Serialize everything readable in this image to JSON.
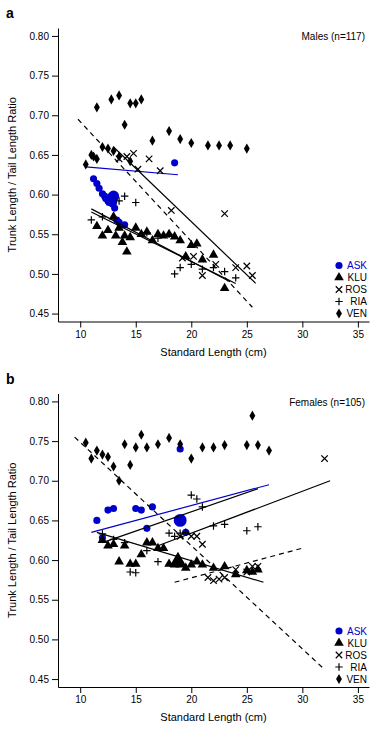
{
  "chart_data": [
    {
      "type": "scatter",
      "title": "Males (n=117)",
      "label": "a",
      "xlabel": "Standard Length (cm)",
      "ylabel": "Trunk Length / Tail Length Ratio",
      "xlim": [
        8,
        36
      ],
      "ylim": [
        0.44,
        0.81
      ],
      "xticks": [
        10,
        15,
        20,
        25,
        30,
        35
      ],
      "yticks": [
        0.45,
        {
          "value": 0.5,
          "label": "0.50"
        },
        0.55,
        {
          "value": 0.6,
          "label": "0.60"
        },
        0.65,
        {
          "value": 0.7,
          "label": "0.70"
        },
        0.75,
        {
          "value": 0.8,
          "label": "0.80"
        }
      ],
      "grid": false,
      "legend": "lower right",
      "series": [
        {
          "name": "ASK",
          "color": "#0000cc",
          "marker": "circle",
          "x": [
            11.2,
            11.5,
            11.7,
            12.0,
            12.2,
            12.3,
            12.5,
            12.6,
            12.8,
            12.9,
            13.0,
            13.1,
            13.3,
            13.5,
            14.0,
            18.5
          ],
          "values": [
            0.62,
            0.614,
            0.608,
            0.601,
            0.598,
            0.595,
            0.592,
            0.59,
            0.598,
            0.588,
            0.59,
            0.583,
            0.568,
            0.565,
            0.562,
            0.64
          ],
          "mean": {
            "x": 13.0,
            "y": 0.598,
            "size": 100
          },
          "lines": [
            {
              "x": [
                10.5,
                18.8
              ],
              "values": [
                0.635,
                0.625
              ],
              "line_style": "solid"
            }
          ]
        },
        {
          "name": "KLU",
          "color": "#000000",
          "marker": "triangle",
          "x": [
            11.5,
            12.0,
            12.5,
            13.0,
            13.2,
            13.5,
            13.8,
            14.0,
            14.2,
            14.5,
            15.0,
            15.5,
            16.0,
            16.5,
            17.0,
            17.5,
            18.0,
            18.5,
            19.0,
            19.5,
            20.0,
            20.5,
            21.0,
            22.0,
            23.0
          ],
          "values": [
            0.56,
            0.548,
            0.555,
            0.572,
            0.548,
            0.558,
            0.54,
            0.548,
            0.528,
            0.546,
            0.558,
            0.55,
            0.553,
            0.542,
            0.55,
            0.548,
            0.55,
            0.547,
            0.542,
            0.522,
            0.536,
            0.538,
            0.518,
            0.524,
            0.482
          ],
          "lines": [
            {
              "x": [
                11.0,
                23.5
              ],
              "values": [
                0.582,
                0.49
              ],
              "line_style": "solid"
            }
          ]
        },
        {
          "name": "ROS",
          "color": "#000000",
          "marker": "x",
          "x": [
            13.5,
            14.2,
            14.8,
            15.2,
            16.2,
            17.2,
            18.2,
            19.2,
            20.2,
            21.0,
            22.2,
            23.0,
            24.0,
            25.0,
            25.5
          ],
          "values": [
            0.645,
            0.648,
            0.652,
            0.632,
            0.645,
            0.63,
            0.58,
            0.52,
            0.522,
            0.498,
            0.512,
            0.576,
            0.508,
            0.51,
            0.498
          ],
          "lines": [
            {
              "x": [
                13.0,
                25.8
              ],
              "values": [
                0.66,
                0.488
              ],
              "line_style": "solid"
            }
          ]
        },
        {
          "name": "RIA",
          "color": "#000000",
          "marker": "plus",
          "x": [
            11.0,
            12.0,
            13.5,
            14.0,
            15.0,
            16.0,
            17.0,
            18.0,
            18.5,
            19.0,
            20.0,
            21.0,
            22.0,
            23.0,
            24.0
          ],
          "values": [
            0.568,
            0.572,
            0.592,
            0.598,
            0.59,
            0.552,
            0.545,
            0.55,
            0.5,
            0.508,
            0.512,
            0.506,
            0.508,
            0.503,
            0.495
          ],
          "lines": [
            {
              "x": [
                11.0,
                24.0
              ],
              "values": [
                0.578,
                0.488
              ],
              "line_style": "solid"
            }
          ]
        },
        {
          "name": "VEN",
          "color": "#000000",
          "marker": "diamond",
          "x": [
            10.5,
            11.0,
            11.2,
            11.5,
            12.0,
            12.5,
            13.0,
            13.5,
            14.0,
            14.5,
            15.0,
            16.5,
            18.0,
            19.0,
            20.0,
            21.5,
            22.5,
            23.5,
            25.0,
            11.5,
            12.8,
            13.5,
            14.5,
            15.5
          ],
          "values": [
            0.638,
            0.65,
            0.648,
            0.645,
            0.66,
            0.658,
            0.655,
            0.648,
            0.688,
            0.642,
            0.715,
            0.668,
            0.68,
            0.67,
            0.665,
            0.662,
            0.662,
            0.662,
            0.658,
            0.71,
            0.72,
            0.725,
            0.715,
            0.72
          ],
          "lines": [
            {
              "x": [
                9.8,
                25.5
              ],
              "values": [
                0.695,
                0.458
              ],
              "line_style": "dashed"
            }
          ]
        }
      ]
    },
    {
      "type": "scatter",
      "title": "Females (n=105)",
      "label": "b",
      "xlabel": "Standard Length (cm)",
      "ylabel": "Trunk Length / Tail Length Ratio",
      "xlim": [
        8,
        36
      ],
      "ylim": [
        0.44,
        0.81
      ],
      "xticks": [
        10,
        15,
        20,
        25,
        30,
        35
      ],
      "yticks": [
        0.45,
        {
          "value": 0.5,
          "label": "0.50"
        },
        0.55,
        {
          "value": 0.6,
          "label": "0.60"
        },
        0.65,
        {
          "value": 0.7,
          "label": "0.70"
        },
        0.75,
        {
          "value": 0.8,
          "label": "0.80"
        }
      ],
      "grid": false,
      "legend": "lower right",
      "series": [
        {
          "name": "ASK",
          "color": "#0000cc",
          "marker": "circle",
          "x": [
            11.5,
            12.0,
            12.5,
            13.0,
            15.0,
            15.5,
            16.0,
            16.5,
            19.0,
            19.5
          ],
          "values": [
            0.65,
            0.628,
            0.663,
            0.665,
            0.665,
            0.663,
            0.64,
            0.667,
            0.74,
            0.635
          ],
          "mean": {
            "x": 19.0,
            "y": 0.65,
            "size": 130
          },
          "lines": [
            {
              "x": [
                11.0,
                27.0
              ],
              "values": [
                0.635,
                0.695
              ],
              "line_style": "solid"
            }
          ]
        },
        {
          "name": "KLU",
          "color": "#000000",
          "marker": "triangle",
          "x": [
            12.0,
            12.5,
            13.0,
            13.5,
            14.0,
            14.5,
            15.0,
            15.5,
            16.0,
            16.5,
            17.0,
            17.5,
            18.0,
            18.5,
            19.0,
            19.5,
            20.0,
            20.5,
            21.0,
            22.0,
            23.0,
            24.0,
            25.0,
            25.5,
            26.0
          ],
          "values": [
            0.625,
            0.618,
            0.62,
            0.598,
            0.618,
            0.595,
            0.595,
            0.607,
            0.622,
            0.622,
            0.615,
            0.615,
            0.595,
            0.594,
            0.594,
            0.59,
            0.594,
            0.598,
            0.594,
            0.59,
            0.592,
            0.582,
            0.587,
            0.585,
            0.588
          ],
          "mean": {
            "x": 18.8,
            "y": 0.598,
            "size": 130
          },
          "lines": [
            {
              "x": [
                11.5,
                26.5
              ],
              "values": [
                0.635,
                0.572
              ],
              "line_style": "solid"
            }
          ]
        },
        {
          "name": "ROS",
          "color": "#000000",
          "marker": "x",
          "x": [
            19.0,
            20.0,
            20.5,
            21.0,
            21.5,
            22.0,
            22.5,
            23.0,
            24.0,
            25.0,
            25.5,
            26.0,
            32.0
          ],
          "values": [
            0.63,
            0.63,
            0.63,
            0.62,
            0.578,
            0.574,
            0.576,
            0.578,
            0.588,
            0.585,
            0.592,
            0.592,
            0.728
          ],
          "lines": [
            {
              "x": [
                17.0,
                32.5
              ],
              "values": [
                0.618,
                0.7
              ],
              "line_style": "solid"
            },
            {
              "x": [
                18.5,
                30.0
              ],
              "values": [
                0.572,
                0.615
              ],
              "line_style": "dashed"
            }
          ]
        },
        {
          "name": "RIA",
          "color": "#000000",
          "marker": "plus",
          "x": [
            12.0,
            13.0,
            14.0,
            14.5,
            15.0,
            16.0,
            17.0,
            18.0,
            18.5,
            19.0,
            19.5,
            20.0,
            20.5,
            21.0,
            22.0,
            23.0,
            25.0,
            26.0
          ],
          "values": [
            0.633,
            0.626,
            0.622,
            0.585,
            0.584,
            0.612,
            0.598,
            0.634,
            0.63,
            0.634,
            0.635,
            0.682,
            0.677,
            0.667,
            0.643,
            0.645,
            0.637,
            0.642
          ],
          "lines": [
            {
              "x": [
                12.0,
                26.0
              ],
              "values": [
                0.622,
                0.69
              ],
              "line_style": "solid"
            }
          ]
        },
        {
          "name": "VEN",
          "color": "#000000",
          "marker": "diamond",
          "x": [
            10.5,
            11.0,
            11.5,
            12.0,
            12.5,
            13.0,
            13.5,
            14.0,
            14.5,
            15.0,
            15.5,
            16.0,
            17.0,
            18.0,
            19.0,
            20.0,
            21.0,
            22.0,
            23.0,
            25.0,
            25.5,
            26.0,
            27.0
          ],
          "values": [
            0.748,
            0.728,
            0.738,
            0.733,
            0.73,
            0.718,
            0.7,
            0.746,
            0.72,
            0.742,
            0.758,
            0.742,
            0.746,
            0.754,
            0.746,
            0.728,
            0.742,
            0.742,
            0.745,
            0.745,
            0.782,
            0.745,
            0.738
          ],
          "lines": [
            {
              "x": [
                9.5,
                32.0
              ],
              "values": [
                0.755,
                0.462
              ],
              "line_style": "dashed"
            }
          ]
        }
      ]
    }
  ]
}
